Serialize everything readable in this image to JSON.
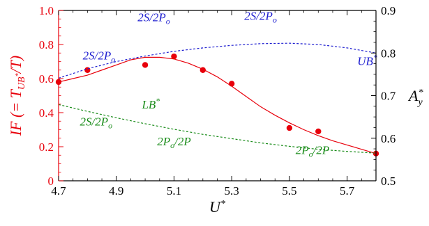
{
  "chart_data": {
    "type": "line",
    "xlabel": "U*",
    "ylabel_left": "IF (= T_UB*/T)",
    "ylabel_right": "A_y*",
    "xlim": [
      4.7,
      5.8
    ],
    "ylim_left": [
      0.0,
      1.0
    ],
    "ylim_right": [
      0.5,
      0.9
    ],
    "x_ticks": [
      "4.7",
      "4.9",
      "5.1",
      "5.3",
      "5.5",
      "5.7"
    ],
    "y_left_ticks": [
      "0",
      "0.2",
      "0.4",
      "0.6",
      "0.8",
      "1.0"
    ],
    "y_right_ticks": [
      "0.5",
      "0.6",
      "0.7",
      "0.8",
      "0.9"
    ],
    "colors": {
      "if": "#e8000b",
      "ub": "#1f1fd0",
      "lb": "#1a8c1a",
      "axis": "#000000"
    },
    "series": [
      {
        "role": "if_points",
        "axis": "left",
        "style": "markers",
        "color": "#e8000b",
        "x": [
          4.7,
          4.8,
          5.0,
          5.1,
          5.2,
          5.3,
          5.5,
          5.6,
          5.8
        ],
        "y": [
          0.58,
          0.65,
          0.68,
          0.73,
          0.65,
          0.57,
          0.31,
          0.29,
          0.16
        ]
      },
      {
        "role": "if_fit",
        "axis": "left",
        "style": "solid",
        "color": "#e8000b",
        "x": [
          4.7,
          4.75,
          4.8,
          4.85,
          4.9,
          4.95,
          5.0,
          5.05,
          5.1,
          5.15,
          5.2,
          5.25,
          5.3,
          5.35,
          5.4,
          5.45,
          5.5,
          5.55,
          5.6,
          5.65,
          5.7,
          5.75,
          5.8
        ],
        "y": [
          0.58,
          0.6,
          0.62,
          0.65,
          0.68,
          0.71,
          0.725,
          0.725,
          0.715,
          0.69,
          0.655,
          0.61,
          0.555,
          0.495,
          0.435,
          0.385,
          0.34,
          0.3,
          0.265,
          0.235,
          0.21,
          0.185,
          0.16
        ]
      },
      {
        "name": "UB*",
        "axis": "right",
        "style": "dashed",
        "color": "#1f1fd0",
        "x": [
          4.7,
          4.8,
          4.9,
          5.0,
          5.1,
          5.2,
          5.3,
          5.4,
          5.5,
          5.6,
          5.7,
          5.8
        ],
        "y": [
          0.741,
          0.763,
          0.78,
          0.793,
          0.804,
          0.812,
          0.818,
          0.822,
          0.823,
          0.82,
          0.812,
          0.8
        ]
      },
      {
        "name": "LB*",
        "axis": "right",
        "style": "dashed",
        "color": "#1a8c1a",
        "x": [
          4.7,
          4.8,
          4.9,
          5.0,
          5.1,
          5.2,
          5.3,
          5.4,
          5.5,
          5.6,
          5.7,
          5.8
        ],
        "y": [
          0.679,
          0.663,
          0.648,
          0.634,
          0.621,
          0.609,
          0.599,
          0.589,
          0.581,
          0.574,
          0.569,
          0.565
        ]
      }
    ],
    "annotations": [
      {
        "text": "2S/2P",
        "sub": "o",
        "color": "#1f1fd0",
        "x": 4.84,
        "y": 0.785,
        "axis": "right"
      },
      {
        "text": "2S/2P",
        "sub": "o",
        "color": "#1f1fd0",
        "x": 5.03,
        "y": 0.875,
        "axis": "right"
      },
      {
        "text": "2S/2P",
        "sub": "o",
        "color": "#1f1fd0",
        "x": 5.4,
        "y": 0.878,
        "axis": "right"
      },
      {
        "text": "UB",
        "sup": "*",
        "color": "#1f1fd0",
        "x": 5.77,
        "y": 0.772,
        "axis": "right"
      },
      {
        "text": "LB",
        "sup": "*",
        "color": "#1a8c1a",
        "x": 5.02,
        "y": 0.67,
        "axis": "right"
      },
      {
        "text": "2S/2P",
        "sub": "o",
        "color": "#1a8c1a",
        "x": 4.83,
        "y": 0.63,
        "axis": "right"
      },
      {
        "text": "2P",
        "sub": "o",
        "tail": "/2P",
        "color": "#1a8c1a",
        "x": 5.1,
        "y": 0.583,
        "axis": "right"
      },
      {
        "text": "2P",
        "sub": "o",
        "tail": "/2P",
        "color": "#1a8c1a",
        "x": 5.58,
        "y": 0.563,
        "axis": "right"
      }
    ]
  }
}
